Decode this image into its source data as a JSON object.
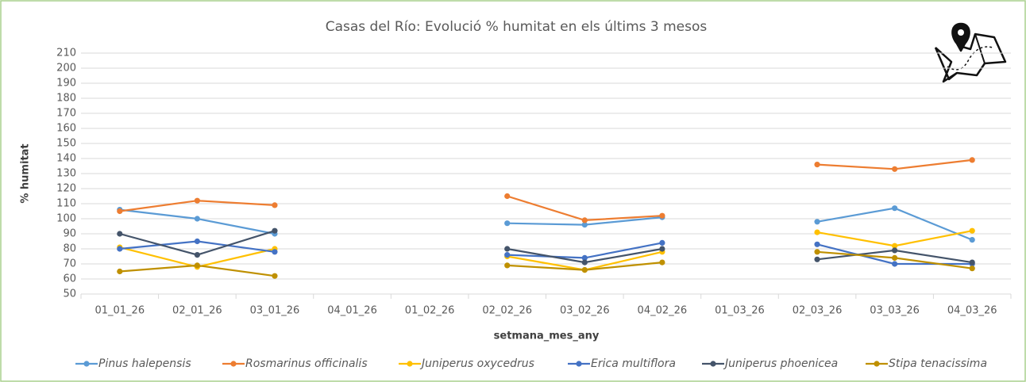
{
  "chart_data": {
    "type": "line",
    "title": "Casas del Río: Evolució % humitat en els últims 3 mesos",
    "x_label": "setmana_mes_any",
    "y_label": "% humitat",
    "categories": [
      "01_01_26",
      "02_01_26",
      "03_01_26",
      "04_01_26",
      "01_02_26",
      "02_02_26",
      "03_02_26",
      "04_02_26",
      "01_03_26",
      "02_03_26",
      "03_03_26",
      "04_03_26"
    ],
    "series": [
      {
        "name": "Pinus halepensis",
        "color": "#5b9bd5",
        "values": [
          106,
          100,
          90,
          null,
          null,
          97,
          96,
          101,
          null,
          98,
          107,
          86
        ]
      },
      {
        "name": "Rosmarinus officinalis",
        "color": "#ed7d31",
        "values": [
          105,
          112,
          109,
          null,
          null,
          115,
          99,
          102,
          null,
          136,
          133,
          139
        ]
      },
      {
        "name": "Juniperus oxycedrus",
        "color": "#ffc000",
        "values": [
          81,
          68,
          80,
          null,
          null,
          75,
          66,
          78,
          null,
          91,
          82,
          92
        ]
      },
      {
        "name": "Erica multiflora",
        "color": "#4472c4",
        "values": [
          80,
          85,
          78,
          null,
          null,
          76,
          74,
          84,
          null,
          83,
          70,
          70
        ]
      },
      {
        "name": "Juniperus phoenicea",
        "color": "#44546a",
        "values": [
          90,
          76,
          92,
          null,
          null,
          80,
          71,
          80,
          null,
          73,
          79,
          71
        ]
      },
      {
        "name": "Stipa tenacissima",
        "color": "#bf9000",
        "values": [
          65,
          69,
          62,
          null,
          null,
          69,
          66,
          71,
          null,
          78,
          74,
          67
        ]
      }
    ],
    "ylim": [
      50,
      210
    ],
    "yticks": [
      50,
      60,
      70,
      80,
      90,
      100,
      110,
      120,
      130,
      140,
      150,
      160,
      170,
      180,
      190,
      200,
      210
    ],
    "grid": true,
    "legend": "bottom"
  }
}
